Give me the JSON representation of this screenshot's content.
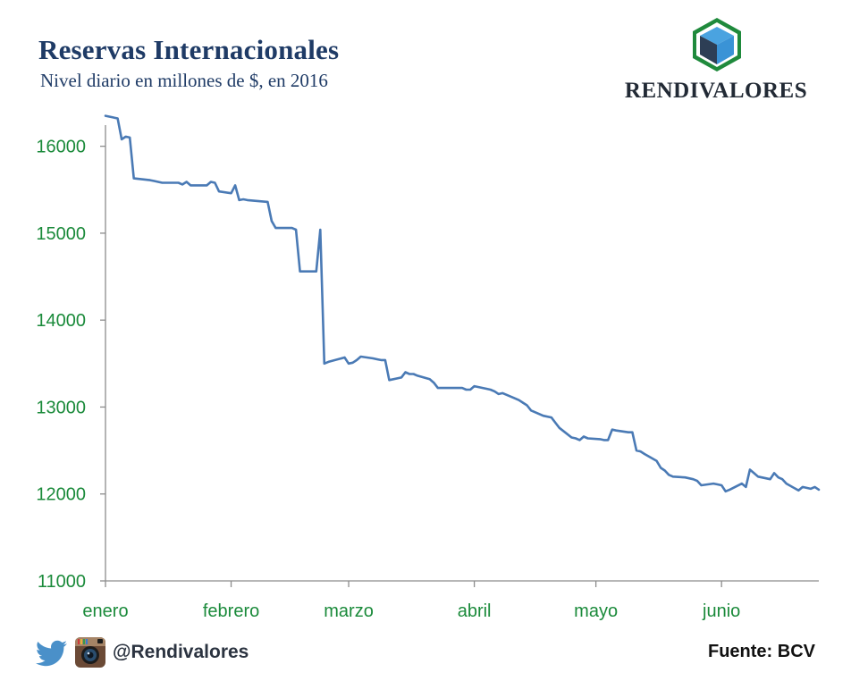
{
  "header": {
    "title": "Reservas Internacionales",
    "subtitle": "Nivel diario en millones de $, en 2016"
  },
  "brand": {
    "name": "RENDIVALORES",
    "logo_icon": "cube-hexagon-icon",
    "colors": {
      "green": "#1f8a3c",
      "dark_blue": "#2d3e55",
      "light_blue": "#3a93d6"
    }
  },
  "footer": {
    "handle": "@Rendivalores",
    "source": "Fuente: BCV",
    "icons": [
      "twitter-icon",
      "instagram-icon"
    ]
  },
  "colors": {
    "line": "#4a7ab5",
    "axis_labels": "#1a8a3a",
    "axis": "#8c8c8c"
  },
  "chart_data": {
    "type": "line",
    "title": "Reservas Internacionales",
    "subtitle": "Nivel diario en millones de $, en 2016",
    "xlabel": "",
    "ylabel": "",
    "ylim": [
      11000,
      16500
    ],
    "yticks": [
      11000,
      12000,
      13000,
      14000,
      15000,
      16000
    ],
    "xlim": [
      "2016-01-01",
      "2016-06-25"
    ],
    "xticks": [
      {
        "date": "2016-01-01",
        "label": "enero"
      },
      {
        "date": "2016-02-01",
        "label": "febrero"
      },
      {
        "date": "2016-03-01",
        "label": "marzo"
      },
      {
        "date": "2016-04-01",
        "label": "abril"
      },
      {
        "date": "2016-05-01",
        "label": "mayo"
      },
      {
        "date": "2016-06-01",
        "label": "junio"
      }
    ],
    "grid": false,
    "legend": "none",
    "series": [
      {
        "values": [
          [
            "2016-01-01",
            16350
          ],
          [
            "2016-01-04",
            16320
          ],
          [
            "2016-01-05",
            16080
          ],
          [
            "2016-01-06",
            16110
          ],
          [
            "2016-01-07",
            16100
          ],
          [
            "2016-01-08",
            15630
          ],
          [
            "2016-01-12",
            15610
          ],
          [
            "2016-01-13",
            15600
          ],
          [
            "2016-01-14",
            15590
          ],
          [
            "2016-01-15",
            15580
          ],
          [
            "2016-01-19",
            15580
          ],
          [
            "2016-01-20",
            15560
          ],
          [
            "2016-01-21",
            15590
          ],
          [
            "2016-01-22",
            15550
          ],
          [
            "2016-01-25",
            15550
          ],
          [
            "2016-01-26",
            15550
          ],
          [
            "2016-01-27",
            15590
          ],
          [
            "2016-01-28",
            15580
          ],
          [
            "2016-01-29",
            15480
          ],
          [
            "2016-02-01",
            15460
          ],
          [
            "2016-02-02",
            15550
          ],
          [
            "2016-02-03",
            15380
          ],
          [
            "2016-02-04",
            15390
          ],
          [
            "2016-02-05",
            15380
          ],
          [
            "2016-02-10",
            15360
          ],
          [
            "2016-02-11",
            15140
          ],
          [
            "2016-02-12",
            15060
          ],
          [
            "2016-02-15",
            15060
          ],
          [
            "2016-02-16",
            15060
          ],
          [
            "2016-02-17",
            15040
          ],
          [
            "2016-02-18",
            14560
          ],
          [
            "2016-02-19",
            14560
          ],
          [
            "2016-02-22",
            14560
          ],
          [
            "2016-02-23",
            15040
          ],
          [
            "2016-02-24",
            13500
          ],
          [
            "2016-02-25",
            13520
          ],
          [
            "2016-02-29",
            13570
          ],
          [
            "2016-03-01",
            13500
          ],
          [
            "2016-03-02",
            13510
          ],
          [
            "2016-03-03",
            13540
          ],
          [
            "2016-03-04",
            13580
          ],
          [
            "2016-03-07",
            13560
          ],
          [
            "2016-03-08",
            13550
          ],
          [
            "2016-03-09",
            13540
          ],
          [
            "2016-03-10",
            13540
          ],
          [
            "2016-03-11",
            13310
          ],
          [
            "2016-03-14",
            13340
          ],
          [
            "2016-03-15",
            13400
          ],
          [
            "2016-03-16",
            13380
          ],
          [
            "2016-03-17",
            13380
          ],
          [
            "2016-03-18",
            13360
          ],
          [
            "2016-03-21",
            13320
          ],
          [
            "2016-03-22",
            13280
          ],
          [
            "2016-03-23",
            13220
          ],
          [
            "2016-03-28",
            13220
          ],
          [
            "2016-03-29",
            13220
          ],
          [
            "2016-03-30",
            13200
          ],
          [
            "2016-03-31",
            13200
          ],
          [
            "2016-04-01",
            13240
          ],
          [
            "2016-04-04",
            13210
          ],
          [
            "2016-04-05",
            13200
          ],
          [
            "2016-04-06",
            13180
          ],
          [
            "2016-04-07",
            13150
          ],
          [
            "2016-04-08",
            13160
          ],
          [
            "2016-04-11",
            13100
          ],
          [
            "2016-04-12",
            13080
          ],
          [
            "2016-04-13",
            13050
          ],
          [
            "2016-04-14",
            13020
          ],
          [
            "2016-04-15",
            12960
          ],
          [
            "2016-04-18",
            12900
          ],
          [
            "2016-04-20",
            12880
          ],
          [
            "2016-04-21",
            12820
          ],
          [
            "2016-04-22",
            12760
          ],
          [
            "2016-04-25",
            12650
          ],
          [
            "2016-04-26",
            12640
          ],
          [
            "2016-04-27",
            12620
          ],
          [
            "2016-04-28",
            12660
          ],
          [
            "2016-04-29",
            12640
          ],
          [
            "2016-05-02",
            12630
          ],
          [
            "2016-05-03",
            12620
          ],
          [
            "2016-05-04",
            12620
          ],
          [
            "2016-05-05",
            12740
          ],
          [
            "2016-05-06",
            12730
          ],
          [
            "2016-05-09",
            12710
          ],
          [
            "2016-05-10",
            12710
          ],
          [
            "2016-05-11",
            12500
          ],
          [
            "2016-05-12",
            12490
          ],
          [
            "2016-05-13",
            12460
          ],
          [
            "2016-05-16",
            12380
          ],
          [
            "2016-05-17",
            12300
          ],
          [
            "2016-05-18",
            12270
          ],
          [
            "2016-05-19",
            12220
          ],
          [
            "2016-05-20",
            12200
          ],
          [
            "2016-05-23",
            12190
          ],
          [
            "2016-05-24",
            12180
          ],
          [
            "2016-05-25",
            12170
          ],
          [
            "2016-05-26",
            12150
          ],
          [
            "2016-05-27",
            12100
          ],
          [
            "2016-05-30",
            12120
          ],
          [
            "2016-05-31",
            12110
          ],
          [
            "2016-06-01",
            12100
          ],
          [
            "2016-06-02",
            12030
          ],
          [
            "2016-06-03",
            12050
          ],
          [
            "2016-06-06",
            12120
          ],
          [
            "2016-06-07",
            12080
          ],
          [
            "2016-06-08",
            12280
          ],
          [
            "2016-06-09",
            12240
          ],
          [
            "2016-06-10",
            12200
          ],
          [
            "2016-06-13",
            12170
          ],
          [
            "2016-06-14",
            12240
          ],
          [
            "2016-06-15",
            12190
          ],
          [
            "2016-06-16",
            12170
          ],
          [
            "2016-06-17",
            12120
          ],
          [
            "2016-06-20",
            12040
          ],
          [
            "2016-06-21",
            12080
          ],
          [
            "2016-06-22",
            12070
          ],
          [
            "2016-06-23",
            12060
          ],
          [
            "2016-06-24",
            12080
          ],
          [
            "2016-06-25",
            12050
          ]
        ]
      }
    ]
  }
}
